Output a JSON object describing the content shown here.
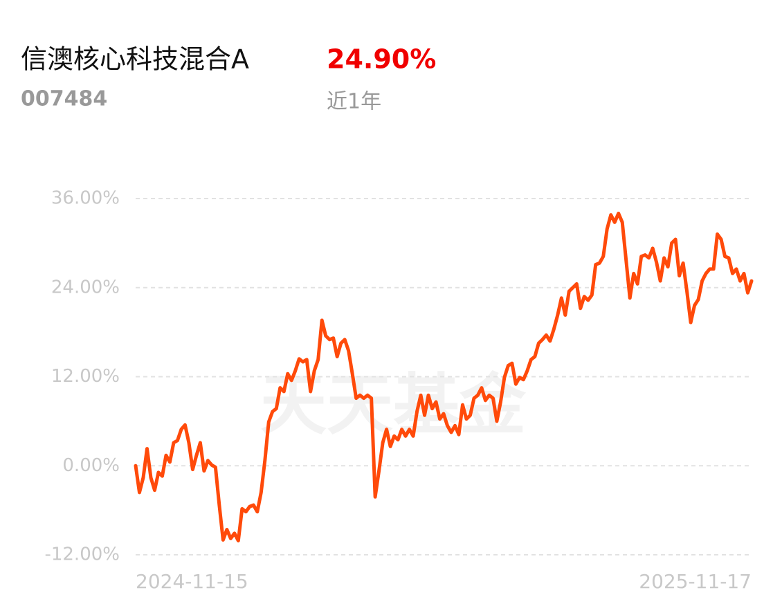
{
  "header": {
    "title": "信澳核心科技混合A",
    "return": "24.90%",
    "code": "007484",
    "period": "近1年"
  },
  "watermark": "天天基金",
  "chart_data": {
    "type": "line",
    "categories": [
      "2024-11-15",
      null,
      null,
      null,
      null,
      null,
      null,
      null,
      null,
      null,
      null,
      null,
      null,
      null,
      null,
      null,
      null,
      null,
      null,
      null,
      null,
      null,
      null,
      null,
      null,
      null,
      null,
      null,
      null,
      null,
      null,
      null,
      null,
      null,
      null,
      null,
      null,
      null,
      null,
      null,
      null,
      null,
      null,
      null,
      null,
      null,
      null,
      null,
      null,
      null,
      null,
      null,
      null,
      null,
      null,
      null,
      null,
      null,
      null,
      null,
      null,
      null,
      null,
      null,
      null,
      null,
      null,
      null,
      null,
      null,
      null,
      null,
      null,
      null,
      null,
      null,
      null,
      null,
      null,
      null,
      null,
      null,
      null,
      null,
      null,
      null,
      null,
      null,
      null,
      null,
      null,
      null,
      null,
      null,
      null,
      null,
      null,
      null,
      null,
      null,
      null,
      null,
      null,
      null,
      null,
      null,
      null,
      null,
      null,
      null,
      null,
      null,
      null,
      null,
      null,
      null,
      null,
      null,
      null,
      null,
      null,
      null,
      null,
      null,
      null,
      null,
      null,
      null,
      null,
      null,
      null,
      null,
      null,
      null,
      null,
      null,
      null,
      null,
      null,
      null,
      null,
      null,
      null,
      null,
      null,
      null,
      null,
      null,
      null,
      null,
      null,
      null,
      null,
      null,
      null,
      null,
      null,
      null,
      null,
      null,
      null,
      null,
      "2025-11-17"
    ],
    "series": [
      {
        "color": "#ff4a0a",
        "values": [
          0,
          -3.6,
          -1.6,
          2.3,
          -1.6,
          -3.3,
          -0.9,
          -1.4,
          1.4,
          0.5,
          3.1,
          3.4,
          4.9,
          5.5,
          3.1,
          -0.5,
          1.4,
          3.1,
          -0.7,
          0.7,
          0.1,
          -0.2,
          -5.3,
          -10,
          -8.6,
          -9.8,
          -9.1,
          -10.1,
          -5.8,
          -6.2,
          -5.5,
          -5.3,
          -6.2,
          -3.6,
          0.7,
          5.9,
          7.3,
          7.7,
          10.5,
          10,
          12.4,
          11.5,
          12.8,
          14.4,
          14,
          14.3,
          10,
          12.8,
          14.3,
          19.6,
          17.5,
          17,
          17.2,
          14.7,
          16.5,
          17,
          15.5,
          12.4,
          9.1,
          9.5,
          9.1,
          9.5,
          9.1,
          -4.2,
          -0.7,
          3.1,
          4.9,
          2.6,
          4,
          3.5,
          4.9,
          4,
          4.9,
          4,
          7.3,
          9.5,
          6.8,
          9.5,
          7.7,
          8.6,
          6.3,
          7,
          5.4,
          4.5,
          5.4,
          4.2,
          8.2,
          6.3,
          6.8,
          9.1,
          9.5,
          10.5,
          8.8,
          9.5,
          9.1,
          6,
          8.6,
          11.9,
          13.5,
          13.8,
          11,
          11.9,
          11.6,
          12.8,
          14.3,
          14.7,
          16.5,
          17,
          17.6,
          16.8,
          18.4,
          20.3,
          22.6,
          20.3,
          23.5,
          24,
          24.5,
          21.2,
          22.8,
          22.3,
          23,
          27.1,
          27.3,
          28.2,
          31.9,
          33.8,
          32.8,
          34,
          32.8,
          27.7,
          22.6,
          25.9,
          24.5,
          28.2,
          28.4,
          28,
          29.3,
          27.4,
          24.9,
          28,
          26.8,
          30,
          30.5,
          25.6,
          27.3,
          23.5,
          19.3,
          21.6,
          22.4,
          24.9,
          25.9,
          26.5,
          26.5,
          31.2,
          30.5,
          28.2,
          28,
          25.9,
          26.5,
          24.9,
          25.9,
          23.3,
          24.9
        ]
      }
    ],
    "ylim": [
      -12,
      36
    ],
    "yticks": [
      {
        "value": -12,
        "label": "-12.00%"
      },
      {
        "value": 0,
        "label": "0.00%"
      },
      {
        "value": 12,
        "label": "12.00%"
      },
      {
        "value": 24,
        "label": "24.00%"
      },
      {
        "value": 36,
        "label": "36.00%"
      }
    ],
    "grid": true
  }
}
